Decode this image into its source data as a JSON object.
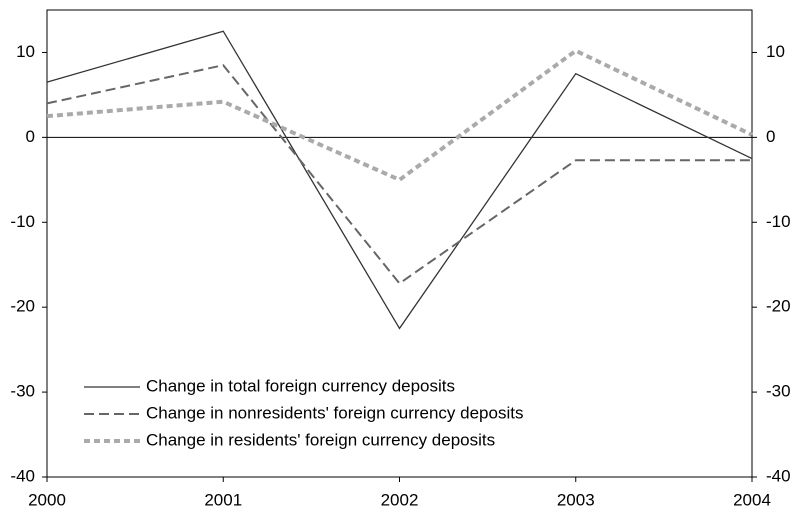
{
  "chart_data": {
    "type": "line",
    "x": [
      2000,
      2001,
      2002,
      2003,
      2004
    ],
    "xlim": [
      2000,
      2004
    ],
    "xticks": [
      2000,
      2001,
      2002,
      2003,
      2004
    ],
    "ylim": [
      -40,
      15
    ],
    "yticks": [
      -40,
      -30,
      -20,
      -10,
      0,
      10
    ],
    "y2lim": [
      -40,
      15
    ],
    "y2ticks": [
      -40,
      -30,
      -20,
      -10,
      0,
      10
    ],
    "series": [
      {
        "name": "Change in total foreign currency deposits",
        "color": "#333333",
        "dash": "solid",
        "values": [
          6.5,
          12.5,
          -22.5,
          7.5,
          -2.5
        ]
      },
      {
        "name": "Change in nonresidents' foreign currency deposits",
        "color": "#666666",
        "dash": "dashed",
        "values": [
          4,
          8.5,
          -17.2,
          -2.7,
          -2.7
        ]
      },
      {
        "name": "Change in residents' foreign currency deposits",
        "color": "#aaaaaa",
        "dash": "dotted",
        "values": [
          2.5,
          4.2,
          -5,
          10.2,
          0.3
        ]
      }
    ],
    "legend": "lower left"
  }
}
